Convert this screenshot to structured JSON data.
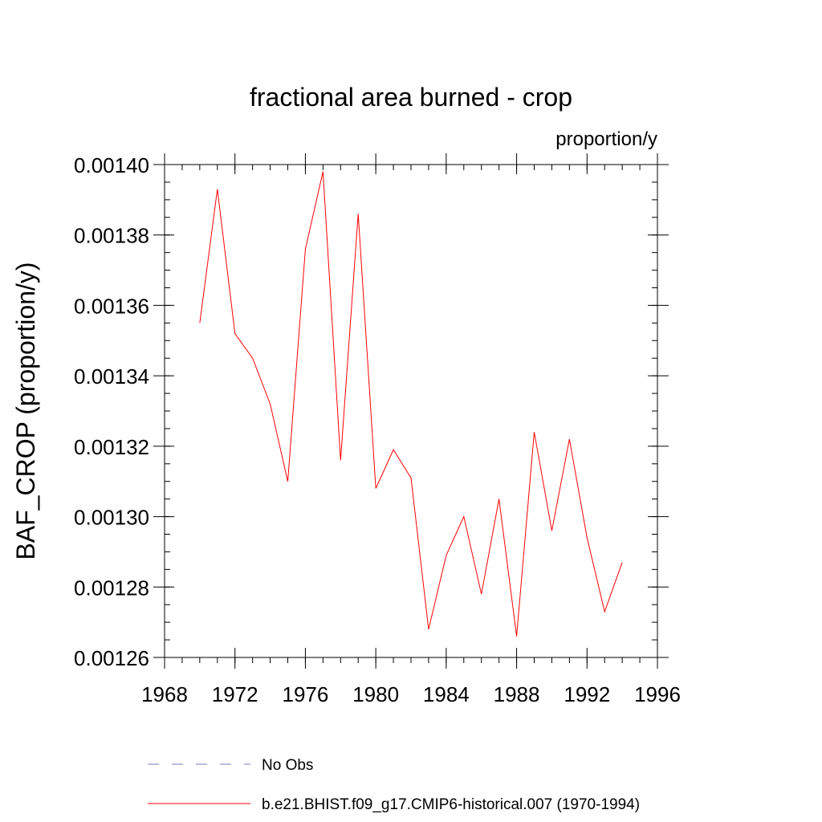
{
  "chart_data": {
    "type": "line",
    "title": "fractional area burned - crop",
    "units_label": "proportion/y",
    "ylabel": "BAF_CROP  (proportion/y)",
    "xlabel": "",
    "xlim": [
      1968,
      1996
    ],
    "ylim": [
      0.00126,
      0.0014
    ],
    "x_major_ticks": [
      1968,
      1972,
      1976,
      1980,
      1984,
      1988,
      1992,
      1996
    ],
    "x_tick_labels": [
      "1968",
      "1972",
      "1976",
      "1980",
      "1984",
      "1988",
      "1992",
      "1996"
    ],
    "x_minor_step": 1,
    "y_major_ticks": [
      0.00126,
      0.00128,
      0.0013,
      0.00132,
      0.00134,
      0.00136,
      0.00138,
      0.0014
    ],
    "y_tick_labels": [
      "0.00126",
      "0.00128",
      "0.00130",
      "0.00132",
      "0.00134",
      "0.00136",
      "0.00138",
      "0.00140"
    ],
    "y_minor_step": 5e-06,
    "grid": false,
    "legend_position": "bottom",
    "series": [
      {
        "name": "No Obs",
        "color": "#7b7bbf",
        "dash": "dashed",
        "x": [],
        "values": []
      },
      {
        "name": "b.e21.BHIST.f09_g17.CMIP6-historical.007 (1970-1994)",
        "color": "#ff0000",
        "dash": "solid",
        "x": [
          1970,
          1971,
          1972,
          1973,
          1974,
          1975,
          1976,
          1977,
          1978,
          1979,
          1980,
          1981,
          1982,
          1983,
          1984,
          1985,
          1986,
          1987,
          1988,
          1989,
          1990,
          1991,
          1992,
          1993,
          1994
        ],
        "values": [
          0.001355,
          0.001393,
          0.001352,
          0.001345,
          0.001332,
          0.00131,
          0.001376,
          0.001398,
          0.001316,
          0.001386,
          0.001308,
          0.001319,
          0.001311,
          0.001268,
          0.001289,
          0.0013,
          0.001278,
          0.001305,
          0.001266,
          0.001324,
          0.001296,
          0.001322,
          0.001294,
          0.001273,
          0.001287
        ]
      }
    ]
  }
}
